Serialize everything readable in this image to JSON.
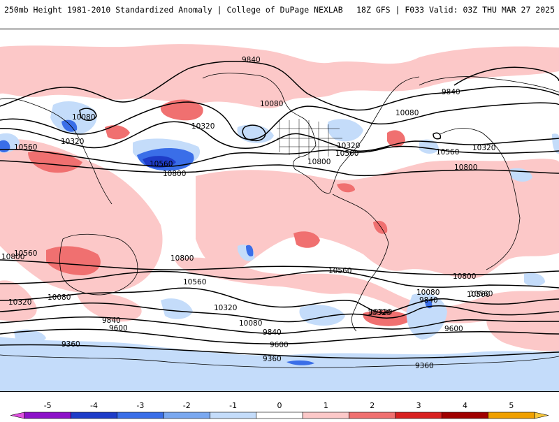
{
  "header": {
    "left": "250mb Height 1981-2010 Standardized Anomaly | College of DuPage NEXLAB",
    "right": "18Z GFS | F033 Valid: 03Z THU MAR 27 2025"
  },
  "colors": {
    "ocean": "#ffffff",
    "land_outline": "#000000",
    "contour": "#000000"
  },
  "colorbar": {
    "ticks": [
      "-5",
      "-4",
      "-3",
      "-2",
      "-1",
      "0",
      "1",
      "2",
      "3",
      "4",
      "5"
    ],
    "colors": [
      "#e050e0",
      "#8c10c8",
      "#1e3cc8",
      "#3a6ee8",
      "#7aa8f0",
      "#c4dcfa",
      "#ffffff",
      "#fcc8c8",
      "#f07070",
      "#d82020",
      "#a00000",
      "#f0a000",
      "#f8c83c"
    ]
  },
  "contour_labels": [
    "9840",
    "9840",
    "10080",
    "10080",
    "10080",
    "10320",
    "10320",
    "10320",
    "10320",
    "10560",
    "10560",
    "10560",
    "10560",
    "10800",
    "10800",
    "10800",
    "10560",
    "10800",
    "10800",
    "10560",
    "10320",
    "10560",
    "10320",
    "10560",
    "10080",
    "10320",
    "10080",
    "9840",
    "9600",
    "9360",
    "9840",
    "9600",
    "9360",
    "10080",
    "9840",
    "10320",
    "9600",
    "9360",
    "10560",
    "10800"
  ]
}
